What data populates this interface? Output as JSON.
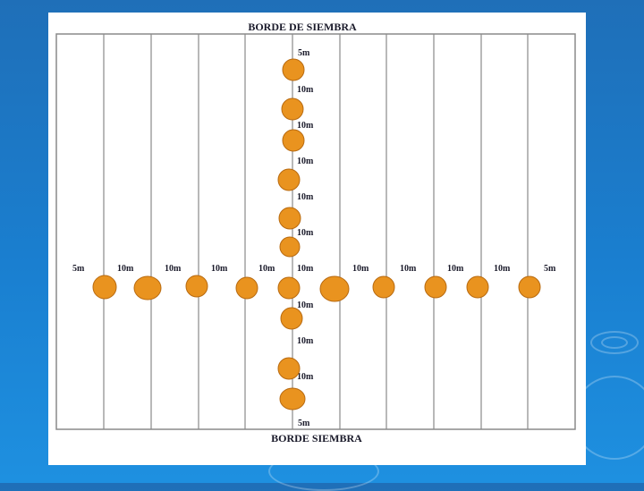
{
  "diagram": {
    "top_title": "BORDE DE SIEMBRA",
    "bottom_title": "BORDE SIEMBRA",
    "vertical_labels": [
      "5m",
      "10m",
      "10m",
      "10m",
      "10m",
      "10m",
      "10m",
      "10m",
      "10m",
      "5m"
    ],
    "horizontal_labels": [
      "5m",
      "10m",
      "10m",
      "10m",
      "10m",
      "10m",
      "10m",
      "10m",
      "10m",
      "10m",
      "5m"
    ],
    "colors": {
      "plant_fill": "#e9931f",
      "plant_stroke": "#b86a10",
      "line": "#8a8a8a",
      "background": "#1a7fd0",
      "panel": "#ffffff"
    }
  }
}
